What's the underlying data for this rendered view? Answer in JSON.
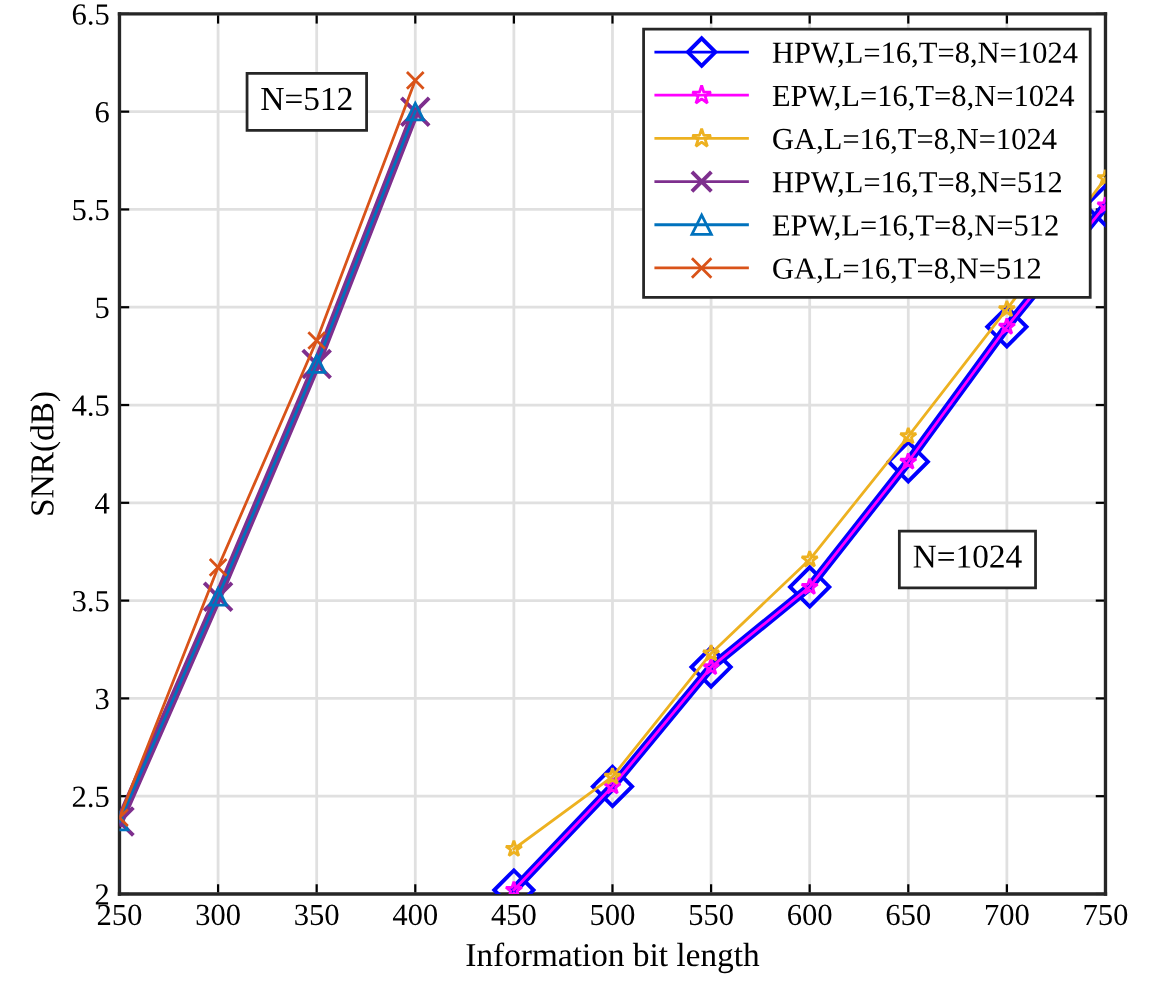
{
  "chart_data": {
    "type": "line",
    "xlabel": "Information bit length",
    "ylabel": "SNR(dB)",
    "xlim": [
      250,
      750
    ],
    "xticks": [
      250,
      300,
      350,
      400,
      450,
      500,
      550,
      600,
      650,
      700,
      750
    ],
    "ylim": [
      2,
      6.5
    ],
    "yticks": [
      2,
      2.5,
      3,
      3.5,
      4,
      4.5,
      5,
      5.5,
      6,
      6.5
    ],
    "grid": true,
    "legend": "top right",
    "line_style": "solid",
    "series": [
      {
        "name": "HPW,L=16,T=8,N=1024",
        "color": "#0000ff",
        "marker": "diamond",
        "x": [
          450,
          500,
          550,
          600,
          650,
          700,
          750
        ],
        "values": [
          2.02,
          2.55,
          3.16,
          3.57,
          4.21,
          4.9,
          5.52
        ]
      },
      {
        "name": "EPW,L=16,T=8,N=1024",
        "color": "#ff00ff",
        "marker": "star",
        "x": [
          450,
          500,
          550,
          600,
          650,
          700,
          750
        ],
        "values": [
          2.02,
          2.55,
          3.16,
          3.57,
          4.21,
          4.9,
          5.52
        ]
      },
      {
        "name": "GA,L=16,T=8,N=1024",
        "color": "#edb120",
        "marker": "star",
        "x": [
          450,
          500,
          550,
          600,
          650,
          700,
          750
        ],
        "values": [
          2.23,
          2.6,
          3.23,
          3.71,
          4.34,
          4.99,
          5.66
        ]
      },
      {
        "name": "HPW,L=16,T=8,N=512",
        "color": "#7e2f8e",
        "marker": "cross",
        "x": [
          250,
          300,
          350,
          400
        ],
        "values": [
          2.37,
          3.52,
          4.71,
          6.0
        ]
      },
      {
        "name": "EPW,L=16,T=8,N=512",
        "color": "#0072bd",
        "marker": "triangle",
        "x": [
          250,
          300,
          350,
          400
        ],
        "values": [
          2.37,
          3.52,
          4.71,
          6.0
        ]
      },
      {
        "name": "GA,L=16,T=8,N=512",
        "color": "#d95319",
        "marker": "cross",
        "x": [
          250,
          300,
          350,
          400
        ],
        "values": [
          2.39,
          3.67,
          4.83,
          6.16
        ]
      }
    ],
    "annotations": [
      "N=512",
      "N=1024"
    ]
  }
}
